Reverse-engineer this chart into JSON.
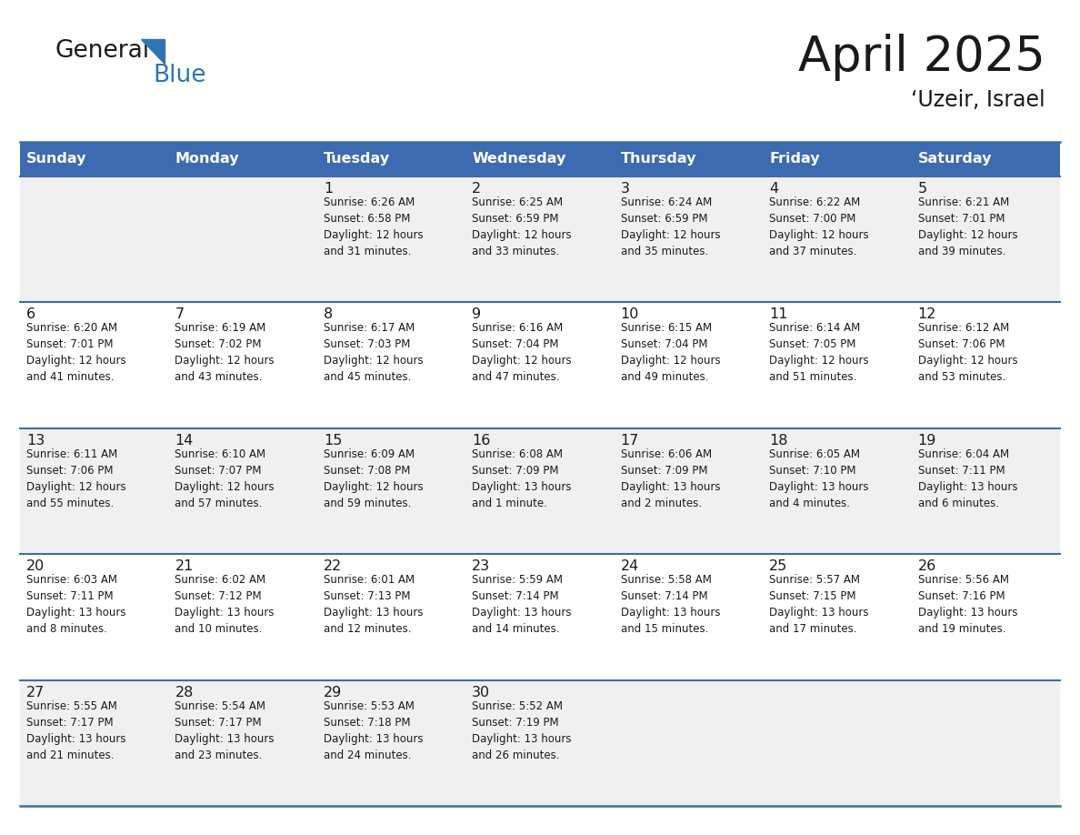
{
  "title": "April 2025",
  "subtitle": "‘Uzeir, Israel",
  "header_bg_color": "#3B6BB0",
  "header_text_color": "#FFFFFF",
  "row_bg_light": "#F0F0F0",
  "row_bg_white": "#FFFFFF",
  "grid_line_color": "#3B6BB0",
  "text_color": "#1a1a1a",
  "info_color": "#1a1a1a",
  "day_names": [
    "Sunday",
    "Monday",
    "Tuesday",
    "Wednesday",
    "Thursday",
    "Friday",
    "Saturday"
  ],
  "logo_general_color": "#1a1a1a",
  "logo_blue_color": "#2E75B6",
  "weeks": [
    [
      {
        "day": "",
        "info": ""
      },
      {
        "day": "",
        "info": ""
      },
      {
        "day": "1",
        "info": "Sunrise: 6:26 AM\nSunset: 6:58 PM\nDaylight: 12 hours\nand 31 minutes."
      },
      {
        "day": "2",
        "info": "Sunrise: 6:25 AM\nSunset: 6:59 PM\nDaylight: 12 hours\nand 33 minutes."
      },
      {
        "day": "3",
        "info": "Sunrise: 6:24 AM\nSunset: 6:59 PM\nDaylight: 12 hours\nand 35 minutes."
      },
      {
        "day": "4",
        "info": "Sunrise: 6:22 AM\nSunset: 7:00 PM\nDaylight: 12 hours\nand 37 minutes."
      },
      {
        "day": "5",
        "info": "Sunrise: 6:21 AM\nSunset: 7:01 PM\nDaylight: 12 hours\nand 39 minutes."
      }
    ],
    [
      {
        "day": "6",
        "info": "Sunrise: 6:20 AM\nSunset: 7:01 PM\nDaylight: 12 hours\nand 41 minutes."
      },
      {
        "day": "7",
        "info": "Sunrise: 6:19 AM\nSunset: 7:02 PM\nDaylight: 12 hours\nand 43 minutes."
      },
      {
        "day": "8",
        "info": "Sunrise: 6:17 AM\nSunset: 7:03 PM\nDaylight: 12 hours\nand 45 minutes."
      },
      {
        "day": "9",
        "info": "Sunrise: 6:16 AM\nSunset: 7:04 PM\nDaylight: 12 hours\nand 47 minutes."
      },
      {
        "day": "10",
        "info": "Sunrise: 6:15 AM\nSunset: 7:04 PM\nDaylight: 12 hours\nand 49 minutes."
      },
      {
        "day": "11",
        "info": "Sunrise: 6:14 AM\nSunset: 7:05 PM\nDaylight: 12 hours\nand 51 minutes."
      },
      {
        "day": "12",
        "info": "Sunrise: 6:12 AM\nSunset: 7:06 PM\nDaylight: 12 hours\nand 53 minutes."
      }
    ],
    [
      {
        "day": "13",
        "info": "Sunrise: 6:11 AM\nSunset: 7:06 PM\nDaylight: 12 hours\nand 55 minutes."
      },
      {
        "day": "14",
        "info": "Sunrise: 6:10 AM\nSunset: 7:07 PM\nDaylight: 12 hours\nand 57 minutes."
      },
      {
        "day": "15",
        "info": "Sunrise: 6:09 AM\nSunset: 7:08 PM\nDaylight: 12 hours\nand 59 minutes."
      },
      {
        "day": "16",
        "info": "Sunrise: 6:08 AM\nSunset: 7:09 PM\nDaylight: 13 hours\nand 1 minute."
      },
      {
        "day": "17",
        "info": "Sunrise: 6:06 AM\nSunset: 7:09 PM\nDaylight: 13 hours\nand 2 minutes."
      },
      {
        "day": "18",
        "info": "Sunrise: 6:05 AM\nSunset: 7:10 PM\nDaylight: 13 hours\nand 4 minutes."
      },
      {
        "day": "19",
        "info": "Sunrise: 6:04 AM\nSunset: 7:11 PM\nDaylight: 13 hours\nand 6 minutes."
      }
    ],
    [
      {
        "day": "20",
        "info": "Sunrise: 6:03 AM\nSunset: 7:11 PM\nDaylight: 13 hours\nand 8 minutes."
      },
      {
        "day": "21",
        "info": "Sunrise: 6:02 AM\nSunset: 7:12 PM\nDaylight: 13 hours\nand 10 minutes."
      },
      {
        "day": "22",
        "info": "Sunrise: 6:01 AM\nSunset: 7:13 PM\nDaylight: 13 hours\nand 12 minutes."
      },
      {
        "day": "23",
        "info": "Sunrise: 5:59 AM\nSunset: 7:14 PM\nDaylight: 13 hours\nand 14 minutes."
      },
      {
        "day": "24",
        "info": "Sunrise: 5:58 AM\nSunset: 7:14 PM\nDaylight: 13 hours\nand 15 minutes."
      },
      {
        "day": "25",
        "info": "Sunrise: 5:57 AM\nSunset: 7:15 PM\nDaylight: 13 hours\nand 17 minutes."
      },
      {
        "day": "26",
        "info": "Sunrise: 5:56 AM\nSunset: 7:16 PM\nDaylight: 13 hours\nand 19 minutes."
      }
    ],
    [
      {
        "day": "27",
        "info": "Sunrise: 5:55 AM\nSunset: 7:17 PM\nDaylight: 13 hours\nand 21 minutes."
      },
      {
        "day": "28",
        "info": "Sunrise: 5:54 AM\nSunset: 7:17 PM\nDaylight: 13 hours\nand 23 minutes."
      },
      {
        "day": "29",
        "info": "Sunrise: 5:53 AM\nSunset: 7:18 PM\nDaylight: 13 hours\nand 24 minutes."
      },
      {
        "day": "30",
        "info": "Sunrise: 5:52 AM\nSunset: 7:19 PM\nDaylight: 13 hours\nand 26 minutes."
      },
      {
        "day": "",
        "info": ""
      },
      {
        "day": "",
        "info": ""
      },
      {
        "day": "",
        "info": ""
      }
    ]
  ]
}
